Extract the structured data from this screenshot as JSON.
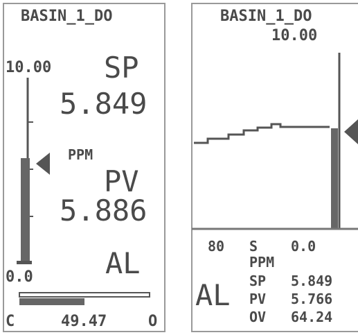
{
  "left_panel": {
    "title": "BASIN_1_DO",
    "scale_max": "10.00",
    "scale_min": "0.0",
    "sp_label": "SP",
    "sp_value": "5.849",
    "unit": "PPM",
    "pv_label": "PV",
    "pv_value": "5.886",
    "alarm": "AL",
    "output_left": "C",
    "output_value": "49.47",
    "output_right": "O"
  },
  "right_panel": {
    "title": "BASIN_1_DO",
    "scale_max": "10.00",
    "time_span": "80",
    "time_unit": "S",
    "scale_min": "0.0",
    "unit": "PPM",
    "alarm": "AL",
    "rows": [
      {
        "label": "SP",
        "value": "5.849"
      },
      {
        "label": "PV",
        "value": "5.766"
      },
      {
        "label": "OV",
        "value": "64.24"
      }
    ]
  }
}
